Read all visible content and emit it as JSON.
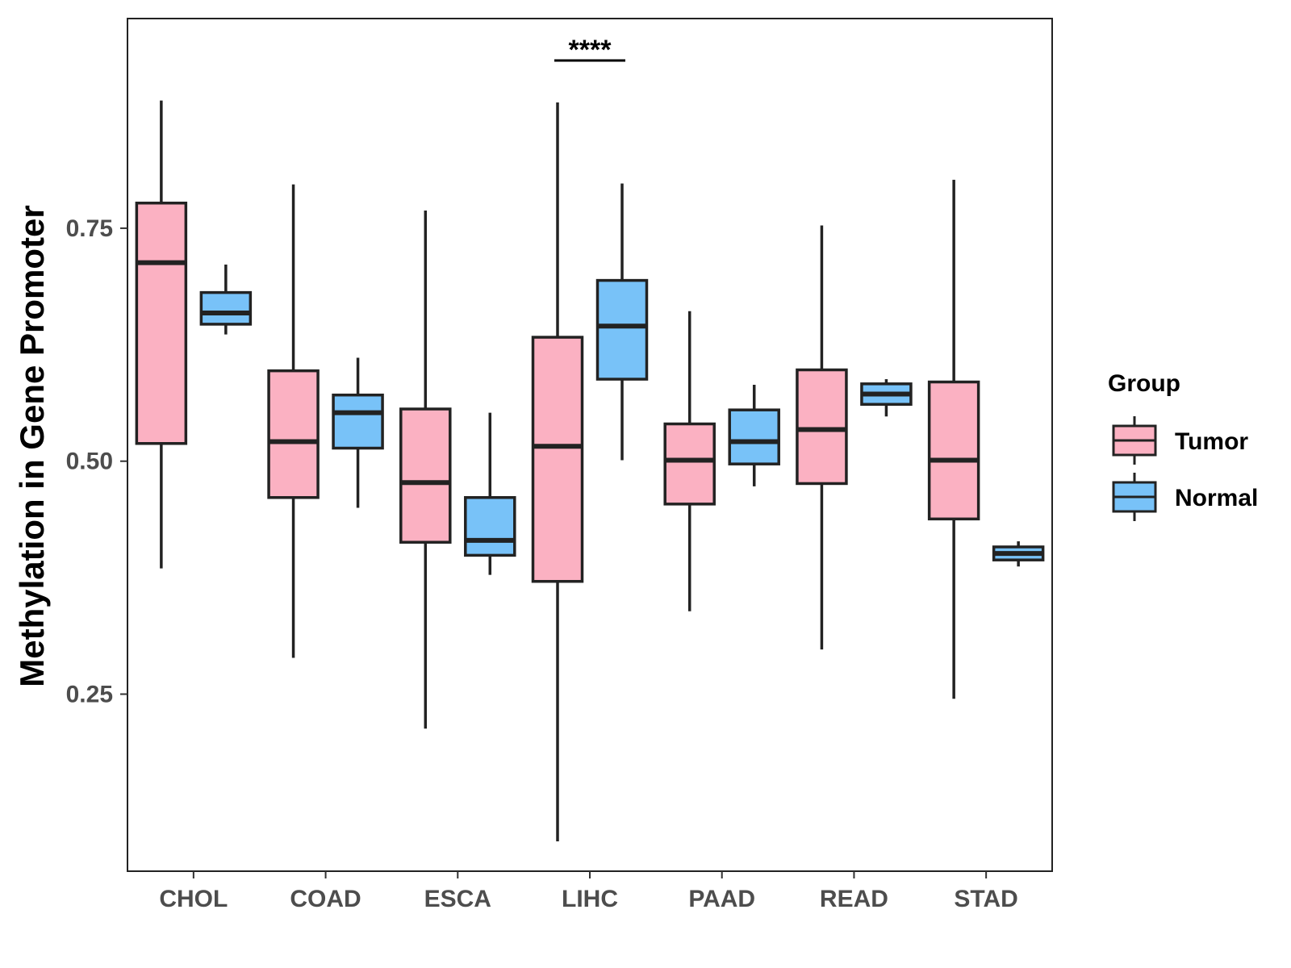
{
  "chart_data": {
    "type": "box",
    "title": "",
    "xlabel": "",
    "ylabel": "Methylation in Gene Promoter",
    "ylim": [
      0.06,
      0.975
    ],
    "yticks": [
      0.25,
      0.5,
      0.75
    ],
    "ytick_labels": [
      "0.25",
      "0.50",
      "0.75"
    ],
    "categories": [
      "CHOL",
      "COAD",
      "ESCA",
      "LIHC",
      "PAAD",
      "READ",
      "STAD"
    ],
    "legend": {
      "title": "Group",
      "position": "right",
      "entries": [
        "Tumor",
        "Normal"
      ]
    },
    "colors": {
      "Tumor": "#fbb1c2",
      "Normal": "#78c2f8",
      "outline": "#222222"
    },
    "series": [
      {
        "name": "Tumor",
        "boxes": [
          {
            "category": "CHOL",
            "min": 0.385,
            "q1": 0.519,
            "median": 0.713,
            "q3": 0.777,
            "max": 0.887
          },
          {
            "category": "COAD",
            "min": 0.289,
            "q1": 0.461,
            "median": 0.521,
            "q3": 0.597,
            "max": 0.797
          },
          {
            "category": "ESCA",
            "min": 0.213,
            "q1": 0.413,
            "median": 0.477,
            "q3": 0.556,
            "max": 0.769
          },
          {
            "category": "LIHC",
            "min": 0.092,
            "q1": 0.371,
            "median": 0.516,
            "q3": 0.633,
            "max": 0.885
          },
          {
            "category": "PAAD",
            "min": 0.339,
            "q1": 0.454,
            "median": 0.501,
            "q3": 0.54,
            "max": 0.661
          },
          {
            "category": "READ",
            "min": 0.298,
            "q1": 0.476,
            "median": 0.534,
            "q3": 0.598,
            "max": 0.753
          },
          {
            "category": "STAD",
            "min": 0.245,
            "q1": 0.438,
            "median": 0.501,
            "q3": 0.585,
            "max": 0.802
          }
        ]
      },
      {
        "name": "Normal",
        "boxes": [
          {
            "category": "CHOL",
            "min": 0.636,
            "q1": 0.647,
            "median": 0.659,
            "q3": 0.681,
            "max": 0.711
          },
          {
            "category": "COAD",
            "min": 0.45,
            "q1": 0.514,
            "median": 0.552,
            "q3": 0.571,
            "max": 0.611
          },
          {
            "category": "ESCA",
            "min": 0.378,
            "q1": 0.399,
            "median": 0.415,
            "q3": 0.461,
            "max": 0.552
          },
          {
            "category": "LIHC",
            "min": 0.501,
            "q1": 0.588,
            "median": 0.645,
            "q3": 0.694,
            "max": 0.798
          },
          {
            "category": "PAAD",
            "min": 0.473,
            "q1": 0.497,
            "median": 0.521,
            "q3": 0.555,
            "max": 0.582
          },
          {
            "category": "READ",
            "min": 0.548,
            "q1": 0.561,
            "median": 0.572,
            "q3": 0.583,
            "max": 0.588
          },
          {
            "category": "STAD",
            "min": 0.387,
            "q1": 0.394,
            "median": 0.401,
            "q3": 0.408,
            "max": 0.414
          }
        ]
      }
    ],
    "annotations": [
      {
        "category": "LIHC",
        "text": "****"
      }
    ]
  }
}
